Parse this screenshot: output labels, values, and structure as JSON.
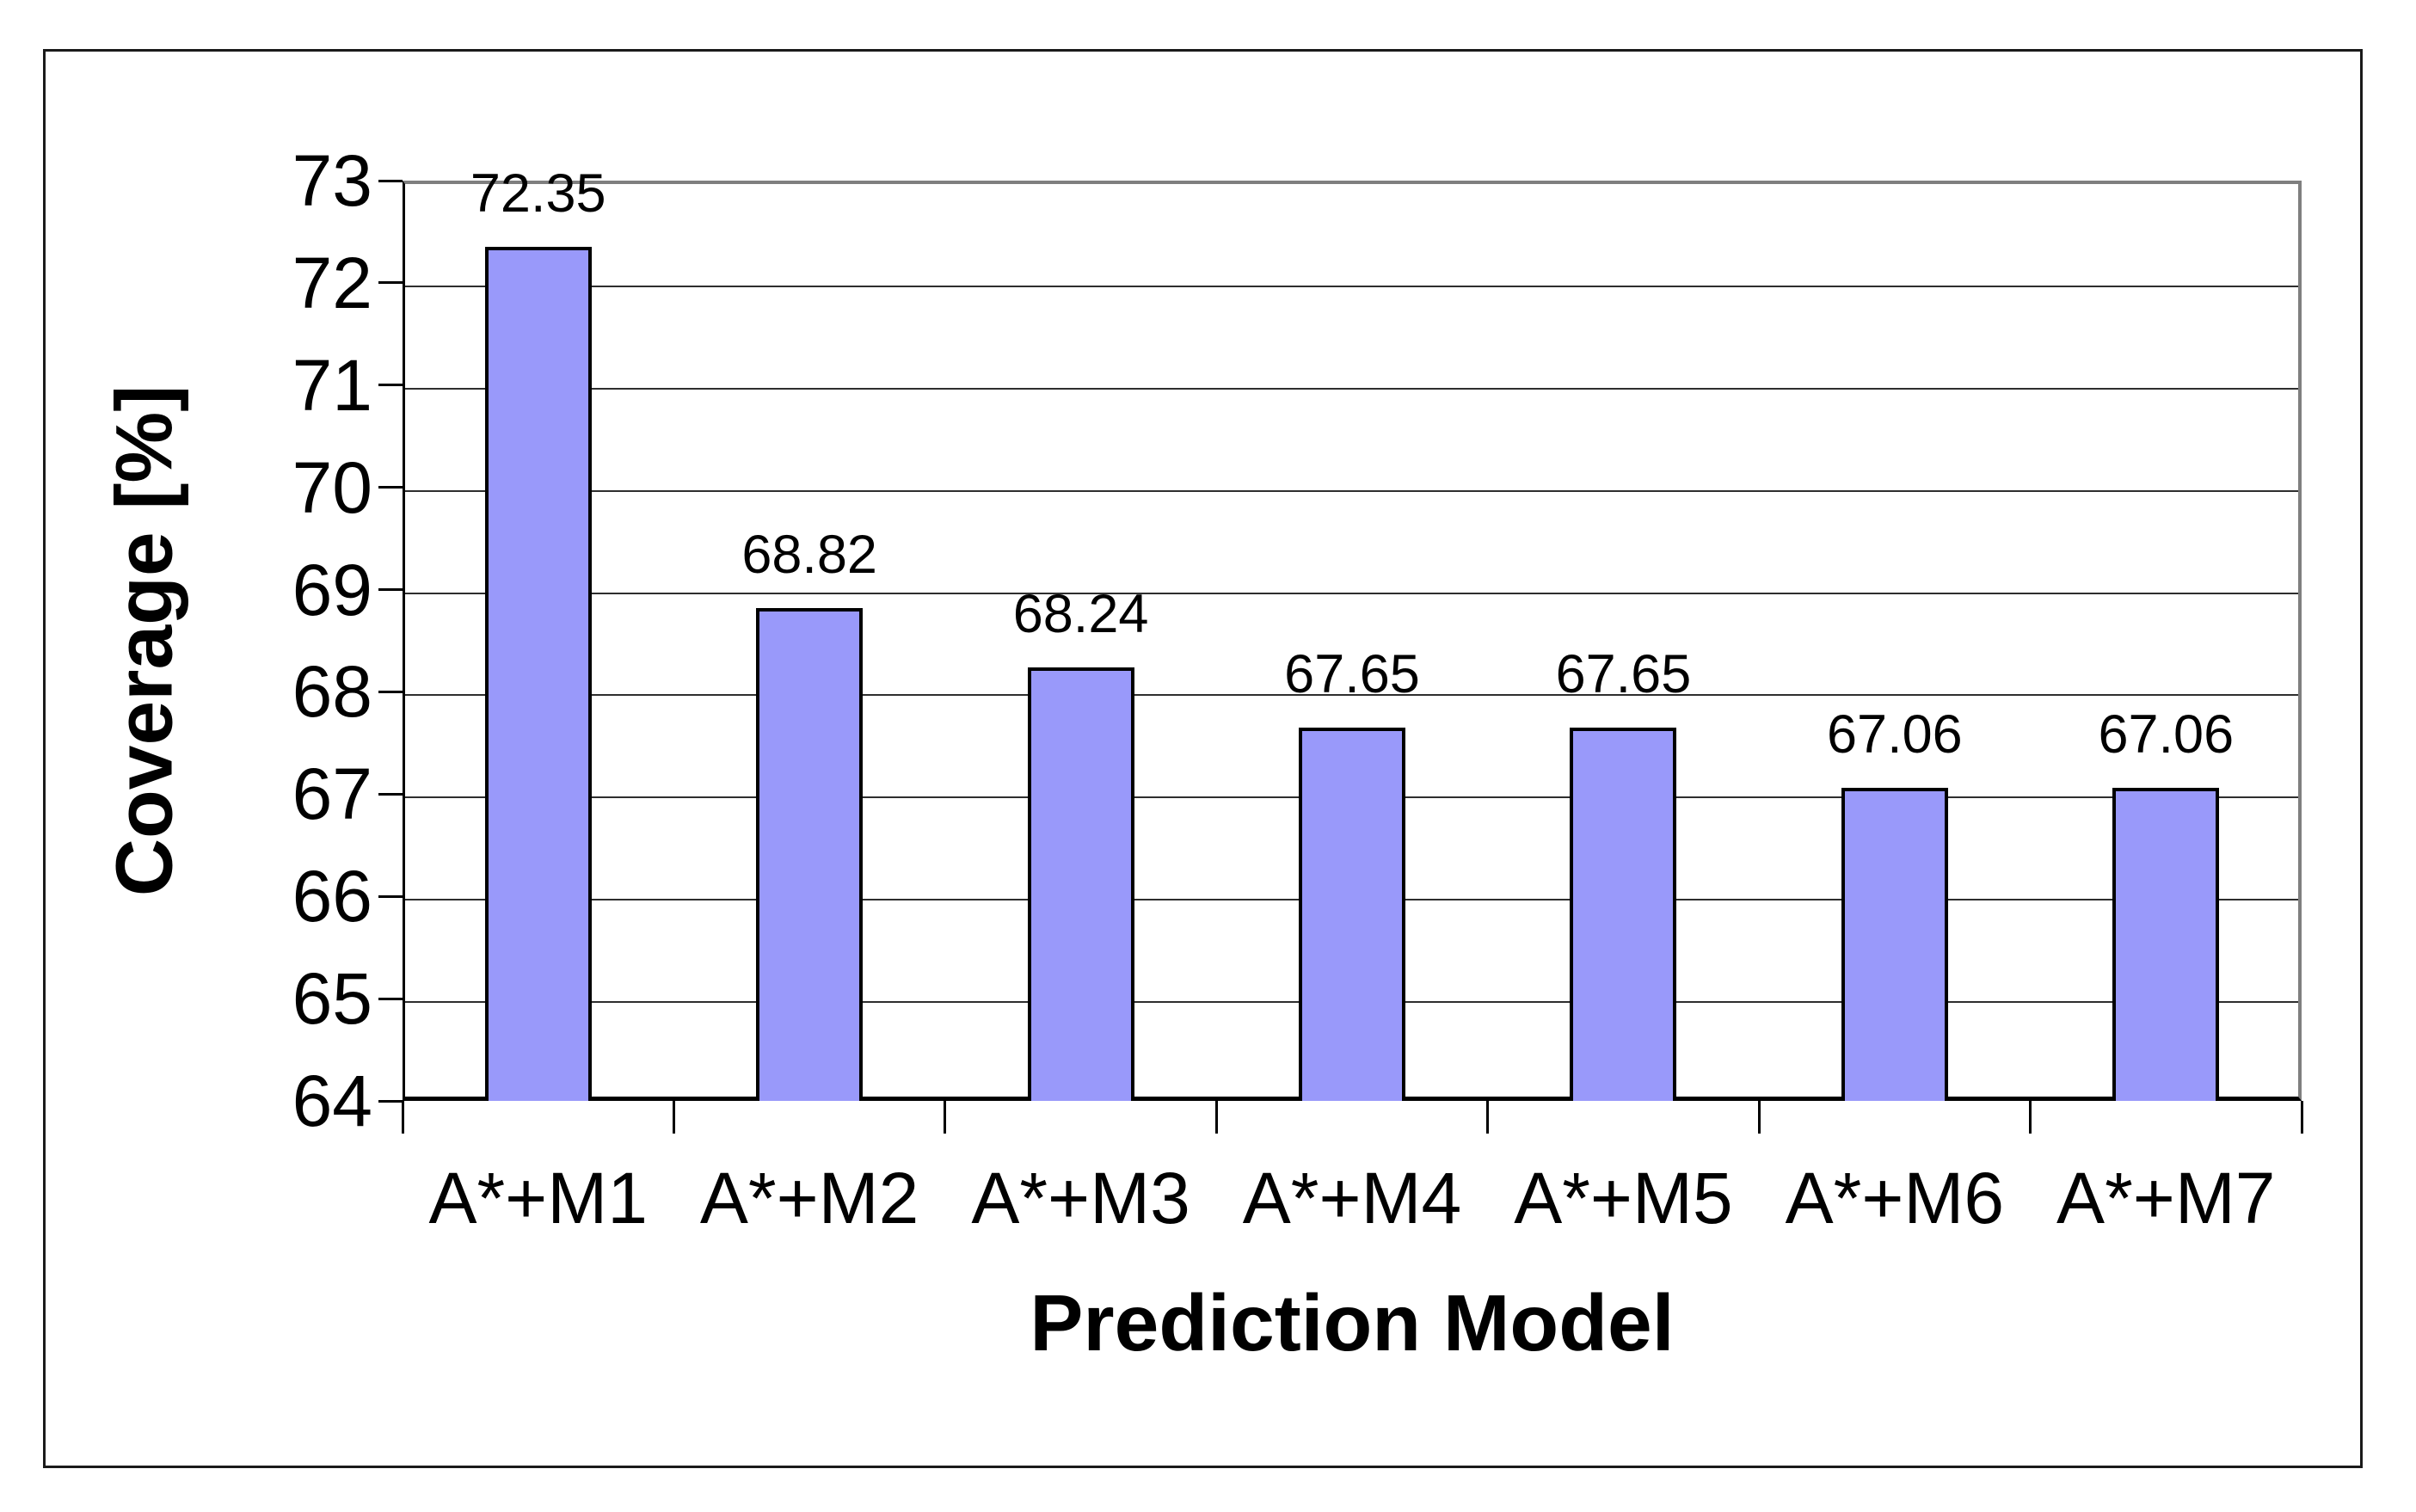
{
  "figure": {
    "background": "#ffffff",
    "border_color": "#1a1a1a"
  },
  "chart_data": {
    "type": "bar",
    "title": "",
    "categories": [
      "A*+M1",
      "A*+M2",
      "A*+M3",
      "A*+M4",
      "A*+M5",
      "A*+M6",
      "A*+M7"
    ],
    "values": [
      72.35,
      68.82,
      68.24,
      67.65,
      67.65,
      67.06,
      67.06
    ],
    "bar_labels": [
      "72.35",
      "68.82",
      "68.24",
      "67.65",
      "67.65",
      "67.06",
      "67.06"
    ],
    "xlabel": "Prediction Model",
    "ylabel": "Coverage [%]",
    "ylim": [
      64,
      73
    ],
    "yticks": [
      64,
      65,
      66,
      67,
      68,
      69,
      70,
      71,
      72,
      73
    ],
    "ytick_labels": [
      "64",
      "65",
      "66",
      "67",
      "68",
      "69",
      "70",
      "71",
      "72",
      "73"
    ],
    "grid": true,
    "legend": "none",
    "bar_color": "#9999fa",
    "bar_border_color": "#000000",
    "gridline_color": "#2e2e2e",
    "plot_border_color": "#7f7f7f",
    "axis_color": "#000000",
    "text_color": "#000000"
  }
}
